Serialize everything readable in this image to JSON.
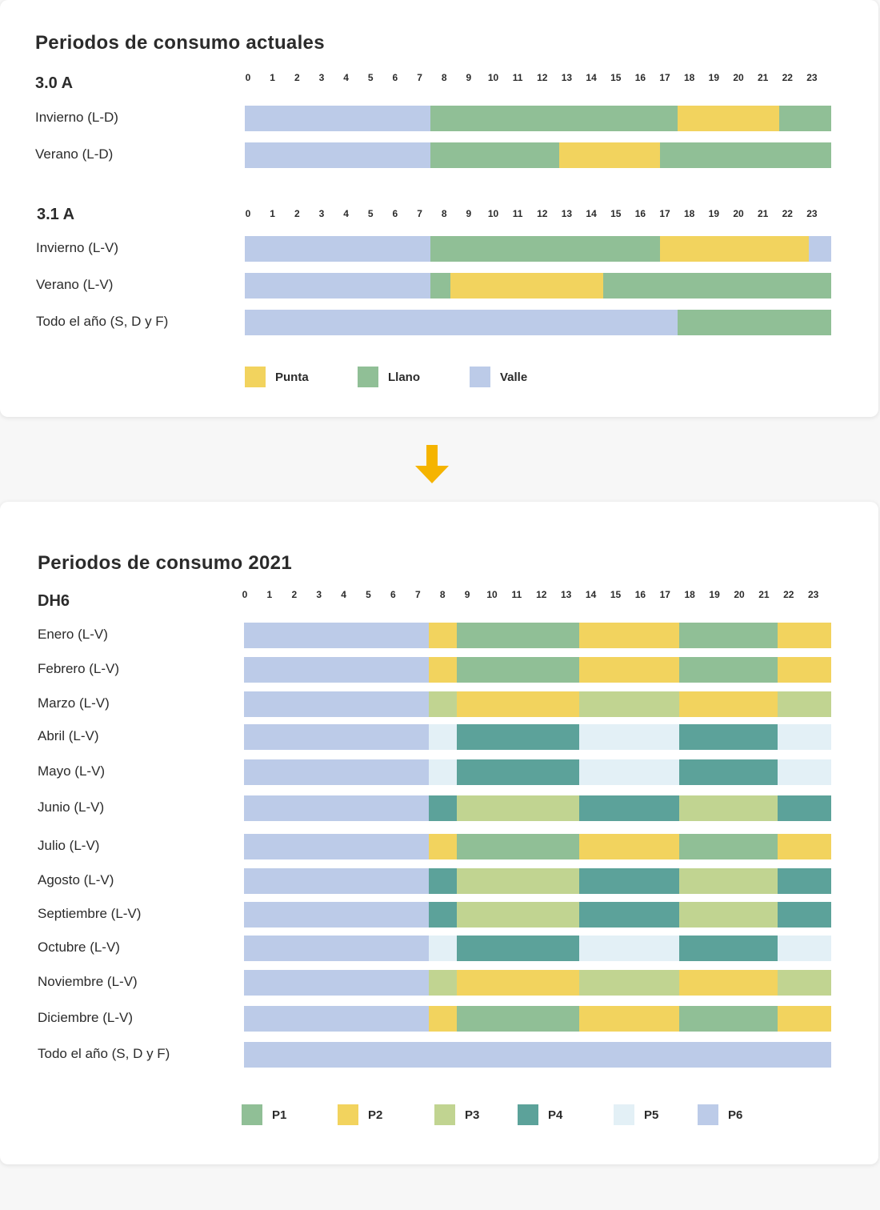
{
  "colors": {
    "punta": "#f2d35e",
    "llano": "#90bf96",
    "valle": "#bccbe8",
    "p1": "#90bf96",
    "p2": "#f2d35e",
    "p3": "#c1d491",
    "p4": "#5ca29a",
    "p5": "#e3f0f6",
    "p6": "#bccbe8",
    "arrow": "#f5b400"
  },
  "top": {
    "title": "Periodos de consumo actuales",
    "legend": [
      {
        "key": "punta",
        "label": "Punta"
      },
      {
        "key": "llano",
        "label": "Llano"
      },
      {
        "key": "valle",
        "label": "Valle"
      }
    ]
  },
  "bottom": {
    "title": "Periodos de consumo 2021",
    "legend": [
      {
        "key": "p1",
        "label": "P1"
      },
      {
        "key": "p2",
        "label": "P2"
      },
      {
        "key": "p3",
        "label": "P3"
      },
      {
        "key": "p4",
        "label": "P4"
      },
      {
        "key": "p5",
        "label": "P5"
      },
      {
        "key": "p6",
        "label": "P6"
      }
    ]
  },
  "hours": [
    "0",
    "1",
    "2",
    "3",
    "4",
    "5",
    "6",
    "7",
    "8",
    "9",
    "10",
    "11",
    "12",
    "13",
    "14",
    "15",
    "16",
    "17",
    "18",
    "19",
    "20",
    "21",
    "22",
    "23"
  ],
  "chart_data": [
    {
      "type": "bar",
      "orientation": "horizontal-timeline",
      "title": "3.0 A",
      "x_range": [
        0,
        24
      ],
      "x_unit": "hour",
      "rows": [
        {
          "label": "Invierno (L-D)",
          "segments": [
            {
              "period": "valle",
              "start": 0,
              "end": 7.5
            },
            {
              "period": "llano",
              "start": 7.5,
              "end": 17.5
            },
            {
              "period": "punta",
              "start": 17.5,
              "end": 21.6
            },
            {
              "period": "llano",
              "start": 21.6,
              "end": 23.7
            }
          ]
        },
        {
          "label": "Verano (L-D)",
          "segments": [
            {
              "period": "valle",
              "start": 0,
              "end": 7.5
            },
            {
              "period": "llano",
              "start": 7.5,
              "end": 12.7
            },
            {
              "period": "punta",
              "start": 12.7,
              "end": 16.8
            },
            {
              "period": "llano",
              "start": 16.8,
              "end": 23.7
            }
          ]
        }
      ]
    },
    {
      "type": "bar",
      "orientation": "horizontal-timeline",
      "title": "3.1 A",
      "x_range": [
        0,
        24
      ],
      "x_unit": "hour",
      "rows": [
        {
          "label": "Invierno (L-V)",
          "segments": [
            {
              "period": "valle",
              "start": 0,
              "end": 7.5
            },
            {
              "period": "llano",
              "start": 7.5,
              "end": 16.8
            },
            {
              "period": "punta",
              "start": 16.8,
              "end": 22.8
            },
            {
              "period": "valle",
              "start": 22.8,
              "end": 23.7
            }
          ]
        },
        {
          "label": "Verano (L-V)",
          "segments": [
            {
              "period": "valle",
              "start": 0,
              "end": 7.5
            },
            {
              "period": "llano",
              "start": 7.5,
              "end": 8.3
            },
            {
              "period": "punta",
              "start": 8.3,
              "end": 14.5
            },
            {
              "period": "llano",
              "start": 14.5,
              "end": 23.7
            }
          ]
        },
        {
          "label": "Todo el año (S, D y F)",
          "segments": [
            {
              "period": "valle",
              "start": 0,
              "end": 17.5
            },
            {
              "period": "llano",
              "start": 17.5,
              "end": 23.7
            }
          ]
        }
      ]
    },
    {
      "type": "bar",
      "orientation": "horizontal-timeline",
      "title": "DH6",
      "x_range": [
        0,
        24
      ],
      "x_unit": "hour",
      "rows": [
        {
          "label": "Enero (L-V)",
          "segments": [
            {
              "period": "p6",
              "start": 0,
              "end": 7.55
            },
            {
              "period": "p2",
              "start": 7.55,
              "end": 8.7
            },
            {
              "period": "p1",
              "start": 8.7,
              "end": 13.7
            },
            {
              "period": "p2",
              "start": 13.7,
              "end": 17.8
            },
            {
              "period": "p1",
              "start": 17.8,
              "end": 21.8
            },
            {
              "period": "p2",
              "start": 21.8,
              "end": 24
            }
          ]
        },
        {
          "label": "Febrero (L-V)",
          "segments": [
            {
              "period": "p6",
              "start": 0,
              "end": 7.55
            },
            {
              "period": "p2",
              "start": 7.55,
              "end": 8.7
            },
            {
              "period": "p1",
              "start": 8.7,
              "end": 13.7
            },
            {
              "period": "p2",
              "start": 13.7,
              "end": 17.8
            },
            {
              "period": "p1",
              "start": 17.8,
              "end": 21.8
            },
            {
              "period": "p2",
              "start": 21.8,
              "end": 24
            }
          ]
        },
        {
          "label": "Marzo (L-V)",
          "segments": [
            {
              "period": "p6",
              "start": 0,
              "end": 7.55
            },
            {
              "period": "p3",
              "start": 7.55,
              "end": 8.7
            },
            {
              "period": "p2",
              "start": 8.7,
              "end": 13.7
            },
            {
              "period": "p3",
              "start": 13.7,
              "end": 17.8
            },
            {
              "period": "p2",
              "start": 17.8,
              "end": 21.8
            },
            {
              "period": "p3",
              "start": 21.8,
              "end": 24
            }
          ]
        },
        {
          "label": "Abril (L-V)",
          "segments": [
            {
              "period": "p6",
              "start": 0,
              "end": 7.55
            },
            {
              "period": "p5",
              "start": 7.55,
              "end": 8.7
            },
            {
              "period": "p4",
              "start": 8.7,
              "end": 13.7
            },
            {
              "period": "p5",
              "start": 13.7,
              "end": 17.8
            },
            {
              "period": "p4",
              "start": 17.8,
              "end": 21.8
            },
            {
              "period": "p5",
              "start": 21.8,
              "end": 24
            }
          ]
        },
        {
          "label": "Mayo (L-V)",
          "segments": [
            {
              "period": "p6",
              "start": 0,
              "end": 7.55
            },
            {
              "period": "p5",
              "start": 7.55,
              "end": 8.7
            },
            {
              "period": "p4",
              "start": 8.7,
              "end": 13.7
            },
            {
              "period": "p5",
              "start": 13.7,
              "end": 17.8
            },
            {
              "period": "p4",
              "start": 17.8,
              "end": 21.8
            },
            {
              "period": "p5",
              "start": 21.8,
              "end": 24
            }
          ]
        },
        {
          "label": "Junio (L-V)",
          "segments": [
            {
              "period": "p6",
              "start": 0,
              "end": 7.55
            },
            {
              "period": "p4",
              "start": 7.55,
              "end": 8.7
            },
            {
              "period": "p3",
              "start": 8.7,
              "end": 13.7
            },
            {
              "period": "p4",
              "start": 13.7,
              "end": 17.8
            },
            {
              "period": "p3",
              "start": 17.8,
              "end": 21.8
            },
            {
              "period": "p4",
              "start": 21.8,
              "end": 24
            }
          ]
        },
        {
          "label": "Julio (L-V)",
          "segments": [
            {
              "period": "p6",
              "start": 0,
              "end": 7.55
            },
            {
              "period": "p2",
              "start": 7.55,
              "end": 8.7
            },
            {
              "period": "p1",
              "start": 8.7,
              "end": 13.7
            },
            {
              "period": "p2",
              "start": 13.7,
              "end": 17.8
            },
            {
              "period": "p1",
              "start": 17.8,
              "end": 21.8
            },
            {
              "period": "p2",
              "start": 21.8,
              "end": 24
            }
          ]
        },
        {
          "label": "Agosto (L-V)",
          "segments": [
            {
              "period": "p6",
              "start": 0,
              "end": 7.55
            },
            {
              "period": "p4",
              "start": 7.55,
              "end": 8.7
            },
            {
              "period": "p3",
              "start": 8.7,
              "end": 13.7
            },
            {
              "period": "p4",
              "start": 13.7,
              "end": 17.8
            },
            {
              "period": "p3",
              "start": 17.8,
              "end": 21.8
            },
            {
              "period": "p4",
              "start": 21.8,
              "end": 24
            }
          ]
        },
        {
          "label": "Septiembre (L-V)",
          "segments": [
            {
              "period": "p6",
              "start": 0,
              "end": 7.55
            },
            {
              "period": "p4",
              "start": 7.55,
              "end": 8.7
            },
            {
              "period": "p3",
              "start": 8.7,
              "end": 13.7
            },
            {
              "period": "p4",
              "start": 13.7,
              "end": 17.8
            },
            {
              "period": "p3",
              "start": 17.8,
              "end": 21.8
            },
            {
              "period": "p4",
              "start": 21.8,
              "end": 24
            }
          ]
        },
        {
          "label": "Octubre (L-V)",
          "segments": [
            {
              "period": "p6",
              "start": 0,
              "end": 7.55
            },
            {
              "period": "p5",
              "start": 7.55,
              "end": 8.7
            },
            {
              "period": "p4",
              "start": 8.7,
              "end": 13.7
            },
            {
              "period": "p5",
              "start": 13.7,
              "end": 17.8
            },
            {
              "period": "p4",
              "start": 17.8,
              "end": 21.8
            },
            {
              "period": "p5",
              "start": 21.8,
              "end": 24
            }
          ]
        },
        {
          "label": "Noviembre (L-V)",
          "segments": [
            {
              "period": "p6",
              "start": 0,
              "end": 7.55
            },
            {
              "period": "p3",
              "start": 7.55,
              "end": 8.7
            },
            {
              "period": "p2",
              "start": 8.7,
              "end": 13.7
            },
            {
              "period": "p3",
              "start": 13.7,
              "end": 17.8
            },
            {
              "period": "p2",
              "start": 17.8,
              "end": 21.8
            },
            {
              "period": "p3",
              "start": 21.8,
              "end": 24
            }
          ]
        },
        {
          "label": "Diciembre (L-V)",
          "segments": [
            {
              "period": "p6",
              "start": 0,
              "end": 7.55
            },
            {
              "period": "p2",
              "start": 7.55,
              "end": 8.7
            },
            {
              "period": "p1",
              "start": 8.7,
              "end": 13.7
            },
            {
              "period": "p2",
              "start": 13.7,
              "end": 17.8
            },
            {
              "period": "p1",
              "start": 17.8,
              "end": 21.8
            },
            {
              "period": "p2",
              "start": 21.8,
              "end": 24
            }
          ]
        },
        {
          "label": "Todo el año (S, D y F)",
          "segments": [
            {
              "period": "p6",
              "start": 0,
              "end": 24
            }
          ]
        }
      ]
    }
  ]
}
